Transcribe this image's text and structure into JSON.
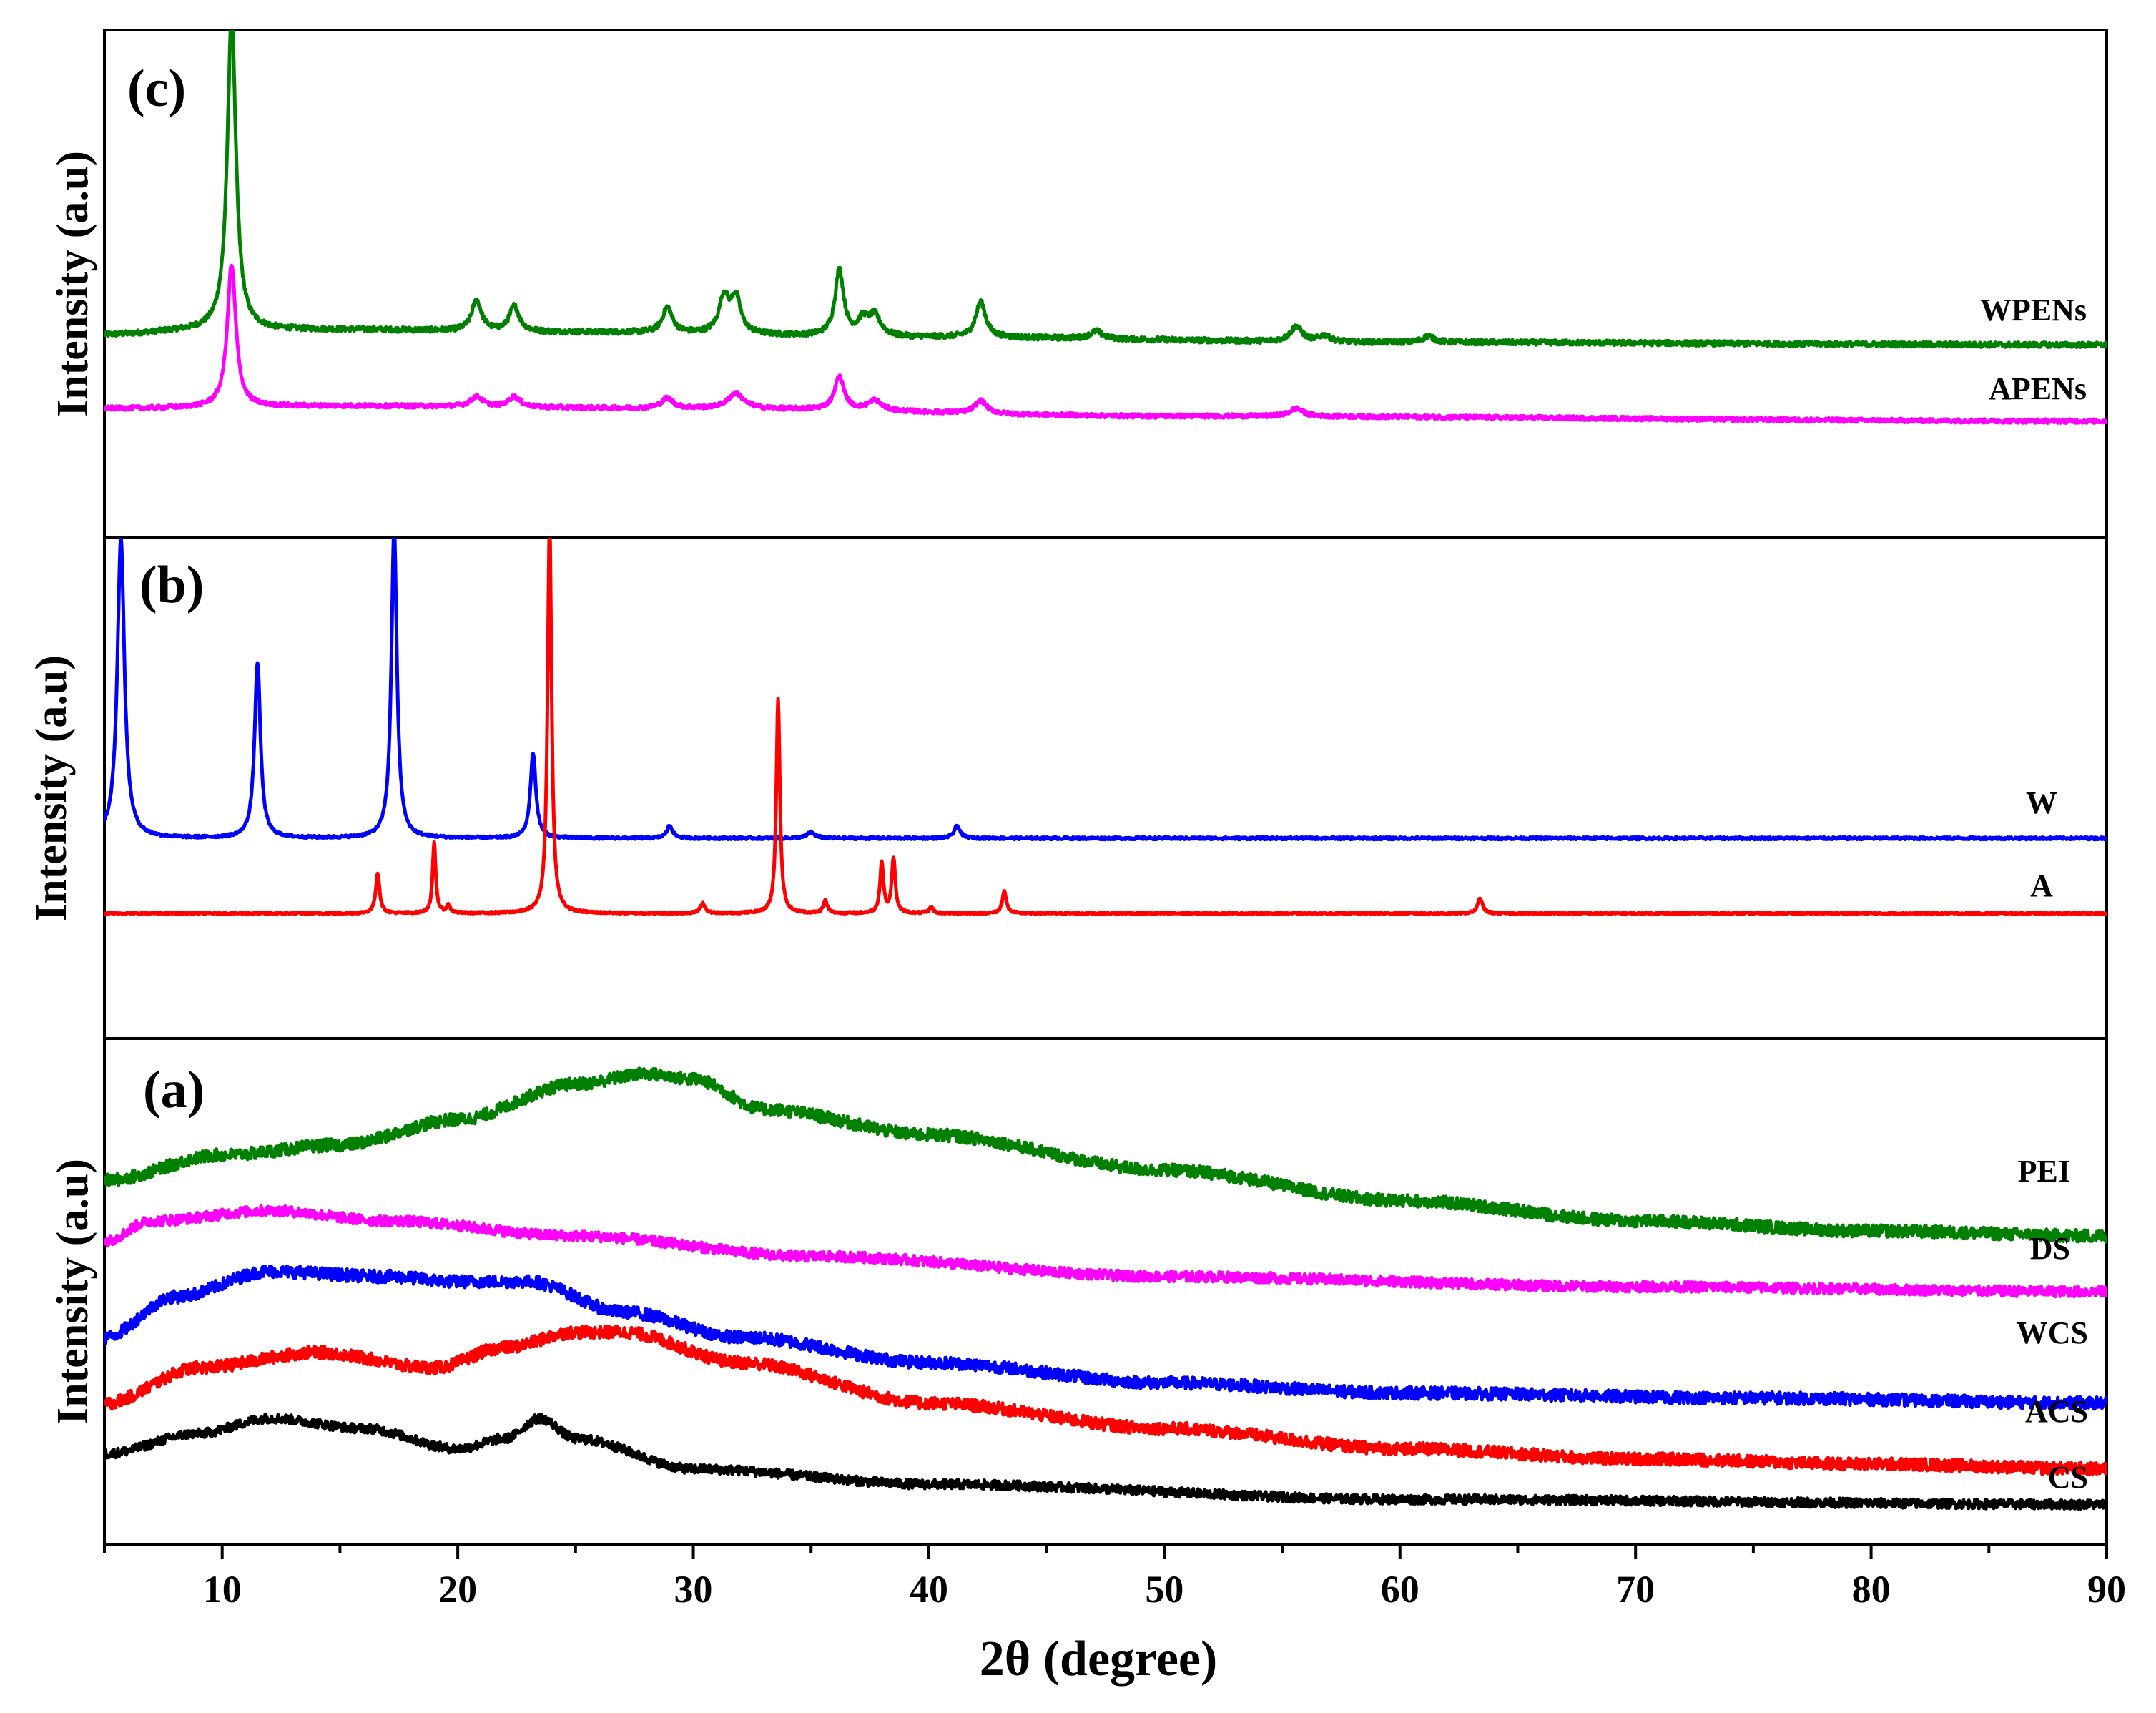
{
  "chart_data": {
    "type": "line",
    "x_axis": {
      "label": "2θ (degree)",
      "range": [
        5,
        90
      ],
      "ticks": [
        10,
        20,
        30,
        40,
        50,
        60,
        70,
        80,
        90
      ],
      "tick_labels": [
        "10",
        "20",
        "30",
        "40",
        "50",
        "60",
        "70",
        "80",
        "90"
      ]
    },
    "panels": [
      {
        "id": "c",
        "label": "(c)",
        "ylabel": "Intensity (a.u)",
        "y_range": [
          0,
          100
        ],
        "series": [
          {
            "name": "WPENs",
            "color": "#008000",
            "baseline": [
              [
                5,
                40
              ],
              [
                9,
                40.8
              ],
              [
                15,
                41
              ],
              [
                25,
                40.5
              ],
              [
                40,
                39.5
              ],
              [
                60,
                38.5
              ],
              [
                90,
                38
              ]
            ],
            "peaks": [
              [
                10.4,
                62,
                0.22
              ],
              [
                20.8,
                6,
                0.25
              ],
              [
                22.4,
                5,
                0.25
              ],
              [
                28.9,
                5,
                0.25
              ],
              [
                31.3,
                7,
                0.25
              ],
              [
                31.8,
                7,
                0.25
              ],
              [
                36.2,
                13,
                0.22
              ],
              [
                37.2,
                3,
                0.25
              ],
              [
                37.7,
                4,
                0.3
              ],
              [
                42.2,
                7,
                0.25
              ],
              [
                47.1,
                1.5,
                0.3
              ],
              [
                55.6,
                3,
                0.3
              ],
              [
                56.8,
                1.2,
                0.3
              ],
              [
                61.2,
                1.2,
                0.3
              ]
            ],
            "noise": 0.5
          },
          {
            "name": "APENs",
            "color": "#ff00ff",
            "baseline": [
              [
                5,
                25.5
              ],
              [
                15,
                26
              ],
              [
                30,
                25.5
              ],
              [
                50,
                24
              ],
              [
                90,
                23
              ]
            ],
            "peaks": [
              [
                10.4,
                28,
                0.22
              ],
              [
                20.8,
                2,
                0.3
              ],
              [
                22.4,
                2,
                0.3
              ],
              [
                28.9,
                2,
                0.3
              ],
              [
                31.8,
                3,
                0.4
              ],
              [
                36.2,
                6.5,
                0.25
              ],
              [
                37.7,
                2,
                0.35
              ],
              [
                42.2,
                2.5,
                0.3
              ],
              [
                55.6,
                1.5,
                0.35
              ]
            ],
            "noise": 0.4
          }
        ]
      },
      {
        "id": "b",
        "label": "(b)",
        "ylabel": "Intensity (a.u)",
        "y_range": [
          0,
          100
        ],
        "series": [
          {
            "name": "W",
            "color": "#0000ff",
            "baseline": [
              [
                5,
                40
              ],
              [
                90,
                40
              ]
            ],
            "peaks": [
              [
                5.7,
                60,
                0.18
              ],
              [
                11.5,
                35,
                0.15
              ],
              [
                17.3,
                62,
                0.14
              ],
              [
                23.2,
                17,
                0.14
              ],
              [
                29.0,
                2.5,
                0.15
              ],
              [
                35.0,
                1.2,
                0.2
              ],
              [
                41.2,
                2.5,
                0.15
              ]
            ],
            "noise": 0.25
          },
          {
            "name": "A",
            "color": "#ff0000",
            "baseline": [
              [
                5,
                25
              ],
              [
                90,
                25
              ]
            ],
            "peaks": [
              [
                16.6,
                8,
                0.1
              ],
              [
                19.0,
                14,
                0.08
              ],
              [
                19.6,
                1.5,
                0.1
              ],
              [
                23.9,
                78,
                0.1
              ],
              [
                30.4,
                2,
                0.12
              ],
              [
                33.6,
                43,
                0.09
              ],
              [
                35.6,
                2.5,
                0.1
              ],
              [
                38.0,
                10,
                0.09
              ],
              [
                38.5,
                11,
                0.09
              ],
              [
                40.1,
                1.2,
                0.1
              ],
              [
                43.2,
                4.5,
                0.1
              ],
              [
                63.4,
                3,
                0.12
              ]
            ],
            "noise": 0.2
          }
        ]
      },
      {
        "id": "a",
        "label": "(a)",
        "ylabel": "Intensity (a.u)",
        "y_range": [
          0,
          100
        ],
        "series": [
          {
            "name": "PEI",
            "color": "#008000",
            "baseline": [
              [
                5,
                72
              ],
              [
                10,
                77
              ],
              [
                15,
                79
              ],
              [
                20,
                84
              ],
              [
                25,
                91
              ],
              [
                28,
                93
              ],
              [
                30,
                92
              ],
              [
                33,
                86
              ],
              [
                40,
                81
              ],
              [
                50,
                74
              ],
              [
                60,
                68
              ],
              [
                70,
                64
              ],
              [
                80,
                62
              ],
              [
                90,
                61
              ]
            ],
            "peaks": [],
            "noise": 1.2
          },
          {
            "name": "DS",
            "color": "#ff00ff",
            "baseline": [
              [
                5,
                60
              ],
              [
                7,
                64
              ],
              [
                12,
                66
              ],
              [
                17,
                64
              ],
              [
                25,
                61
              ],
              [
                35,
                57
              ],
              [
                50,
                53
              ],
              [
                70,
                51
              ],
              [
                90,
                50
              ]
            ],
            "peaks": [],
            "noise": 1.0
          },
          {
            "name": "WCS",
            "color": "#0000ff",
            "baseline": [
              [
                5,
                41
              ],
              [
                8,
                49
              ],
              [
                12,
                54
              ],
              [
                17,
                53
              ],
              [
                20,
                52
              ],
              [
                23,
                52
              ],
              [
                27,
                46
              ],
              [
                32,
                41
              ],
              [
                40,
                36
              ],
              [
                50,
                32
              ],
              [
                60,
                30
              ],
              [
                75,
                29
              ],
              [
                90,
                28
              ]
            ],
            "peaks": [],
            "noise": 1.2
          },
          {
            "name": "ACS",
            "color": "#ff0000",
            "baseline": [
              [
                5,
                28
              ],
              [
                9,
                35
              ],
              [
                14,
                38
              ],
              [
                19,
                35
              ],
              [
                22,
                39
              ],
              [
                25,
                42
              ],
              [
                27,
                42
              ],
              [
                32,
                36
              ],
              [
                40,
                28
              ],
              [
                50,
                23
              ],
              [
                60,
                19
              ],
              [
                70,
                17
              ],
              [
                80,
                16
              ],
              [
                90,
                15
              ]
            ],
            "peaks": [],
            "noise": 1.2
          },
          {
            "name": "CS",
            "color": "#000000",
            "baseline": [
              [
                5,
                18
              ],
              [
                9,
                22
              ],
              [
                12,
                25
              ],
              [
                16,
                23
              ],
              [
                20,
                19
              ],
              [
                22,
                21
              ],
              [
                23.5,
                25
              ],
              [
                25,
                21
              ],
              [
                30,
                15
              ],
              [
                40,
                12
              ],
              [
                60,
                9
              ],
              [
                90,
                8
              ]
            ],
            "peaks": [],
            "noise": 0.9
          }
        ]
      }
    ]
  }
}
